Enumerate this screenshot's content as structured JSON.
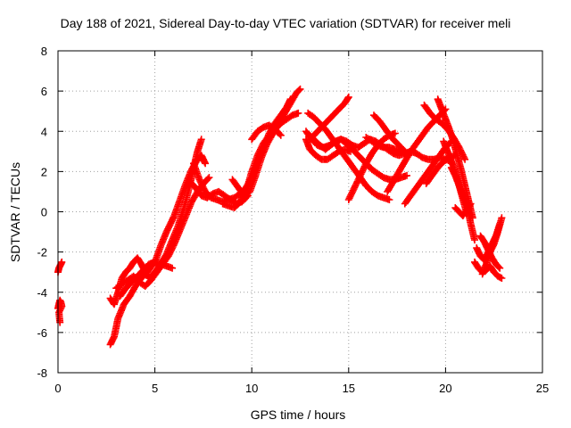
{
  "chart_data": {
    "type": "scatter",
    "title": "Day 188 of 2021, Sidereal Day-to-day VTEC variation (SDTVAR) for receiver meli",
    "xlabel": "GPS time / hours",
    "ylabel": "SDTVAR / TECUs",
    "xlim": [
      0,
      25
    ],
    "ylim": [
      -8,
      8
    ],
    "xticks": [
      "0",
      "5",
      "10",
      "15",
      "20",
      "25"
    ],
    "yticks": [
      "-8",
      "-6",
      "-4",
      "-2",
      "0",
      "2",
      "4",
      "6",
      "8"
    ],
    "grid": true,
    "marker": "+",
    "color": "#ff0000",
    "series": [
      {
        "x": [
          0.0,
          0.05,
          0.1,
          0.15,
          0.2
        ],
        "y": [
          -3.0,
          -2.8,
          -2.7,
          -2.6,
          -2.5
        ]
      },
      {
        "x": [
          0.0,
          0.05,
          0.1,
          0.15,
          0.2,
          0.05,
          0.1
        ],
        "y": [
          -4.8,
          -4.6,
          -4.4,
          -4.5,
          -4.7,
          -5.0,
          -5.5
        ]
      },
      {
        "x": [
          2.7,
          2.9,
          3.1,
          3.4,
          3.7,
          4.0,
          4.3,
          4.6,
          5.0,
          5.3,
          5.6,
          6.0,
          6.3,
          6.6,
          6.9,
          7.2,
          7.4,
          7.6
        ],
        "y": [
          -6.6,
          -6.2,
          -5.3,
          -4.6,
          -4.2,
          -3.7,
          -3.3,
          -3.0,
          -2.5,
          -1.7,
          -1.0,
          -0.2,
          0.6,
          1.4,
          2.1,
          2.6,
          2.8,
          2.4
        ]
      },
      {
        "x": [
          2.7,
          2.9,
          3.1,
          3.3,
          3.5,
          3.7,
          3.9,
          4.1,
          4.3,
          4.5,
          4.7,
          5.0,
          5.3,
          5.6,
          5.9,
          6.2,
          6.5,
          6.8,
          7.0,
          7.2,
          7.4
        ],
        "y": [
          -4.3,
          -4.6,
          -4.0,
          -3.3,
          -3.0,
          -2.8,
          -2.5,
          -2.3,
          -2.6,
          -3.0,
          -3.3,
          -3.0,
          -2.6,
          -2.1,
          -1.4,
          -0.7,
          0.2,
          1.3,
          2.2,
          3.0,
          3.6
        ]
      },
      {
        "x": [
          3.0,
          3.3,
          3.6,
          3.9,
          4.2,
          4.5,
          4.8,
          5.1,
          5.4,
          5.7,
          6.0,
          6.3,
          6.6,
          6.9,
          7.2,
          7.5,
          7.8
        ],
        "y": [
          -3.8,
          -3.6,
          -3.4,
          -3.2,
          -3.5,
          -3.7,
          -3.4,
          -3.0,
          -2.6,
          -2.2,
          -1.6,
          -0.9,
          -0.2,
          0.5,
          1.0,
          1.4,
          1.7
        ]
      },
      {
        "x": [
          3.2,
          3.5,
          3.8,
          4.1,
          4.4,
          4.7,
          5.0,
          5.3,
          5.6,
          5.9
        ],
        "y": [
          -4.2,
          -3.8,
          -3.5,
          -3.2,
          -2.9,
          -2.6,
          -2.5,
          -2.6,
          -2.7,
          -2.8
        ]
      },
      {
        "x": [
          6.8,
          7.1,
          7.4,
          7.7,
          8.0,
          8.3,
          8.6,
          8.9,
          9.2,
          9.5,
          9.8
        ],
        "y": [
          1.5,
          1.2,
          0.8,
          0.7,
          0.9,
          1.0,
          0.8,
          0.6,
          0.4,
          0.5,
          0.8
        ]
      },
      {
        "x": [
          7.0,
          7.3,
          7.6,
          7.9,
          8.2,
          8.5,
          8.8,
          9.1,
          9.4,
          9.7,
          10.0,
          10.3,
          10.6,
          10.9,
          11.2,
          11.5,
          11.8,
          12.0
        ],
        "y": [
          2.4,
          1.6,
          1.0,
          0.7,
          0.6,
          0.5,
          0.6,
          0.7,
          0.9,
          1.2,
          1.7,
          2.4,
          3.2,
          3.9,
          4.4,
          4.8,
          5.2,
          5.6
        ]
      },
      {
        "x": [
          8.5,
          8.8,
          9.1,
          9.4,
          9.7,
          10.0,
          10.3,
          10.6,
          10.9,
          11.2,
          11.5,
          11.8,
          12.1,
          12.4
        ],
        "y": [
          0.4,
          0.3,
          0.2,
          0.5,
          1.0,
          2.0,
          2.8,
          3.4,
          3.8,
          4.1,
          4.4,
          4.6,
          4.8,
          4.9
        ]
      },
      {
        "x": [
          9.0,
          9.3,
          9.6,
          9.9,
          10.2,
          10.5,
          10.8,
          11.1,
          11.4,
          11.7,
          12.0,
          12.3,
          12.5
        ],
        "y": [
          1.6,
          1.2,
          0.8,
          1.0,
          1.8,
          2.7,
          3.4,
          3.9,
          4.4,
          4.9,
          5.4,
          5.9,
          6.1
        ]
      },
      {
        "x": [
          10.0,
          10.3,
          10.6,
          10.9,
          11.2,
          11.5
        ],
        "y": [
          3.6,
          4.0,
          4.2,
          4.3,
          4.1,
          3.8
        ]
      },
      {
        "x": [
          12.8,
          13.1,
          13.4,
          13.7,
          14.0,
          14.3,
          14.6,
          14.9,
          15.2,
          15.5,
          15.8,
          16.1,
          16.4,
          16.7,
          17.0,
          17.3,
          17.6,
          17.9,
          18.2,
          18.5,
          18.8,
          19.1,
          19.4,
          19.7,
          20.0,
          20.3
        ],
        "y": [
          4.0,
          3.6,
          3.3,
          3.2,
          3.3,
          3.5,
          3.6,
          3.5,
          3.3,
          3.2,
          3.4,
          3.6,
          3.5,
          3.3,
          3.1,
          2.9,
          2.8,
          2.9,
          3.0,
          2.9,
          2.7,
          2.6,
          2.6,
          2.7,
          2.6,
          2.5
        ]
      },
      {
        "x": [
          12.8,
          13.0,
          13.3,
          13.6,
          13.9,
          14.2,
          14.5,
          14.8,
          15.1
        ],
        "y": [
          3.6,
          3.1,
          2.8,
          2.6,
          2.6,
          2.8,
          3.0,
          3.1,
          3.0
        ]
      },
      {
        "x": [
          12.9,
          13.2,
          13.5,
          13.8,
          14.1,
          14.4,
          14.7,
          15.0,
          15.3,
          15.6,
          15.9,
          16.2,
          16.5,
          16.8,
          17.1
        ],
        "y": [
          4.9,
          4.7,
          4.4,
          4.1,
          3.7,
          3.3,
          2.9,
          2.5,
          2.1,
          1.7,
          1.3,
          1.0,
          0.8,
          0.7,
          0.6
        ]
      },
      {
        "x": [
          13.0,
          13.4,
          13.8,
          14.2,
          14.6,
          15.0,
          15.3,
          15.6,
          15.9,
          16.2,
          16.5,
          16.8,
          17.1,
          17.4,
          17.7,
          18.0
        ],
        "y": [
          3.8,
          3.4,
          3.1,
          3.4,
          3.6,
          3.3,
          3.0,
          2.7,
          2.4,
          2.1,
          1.9,
          1.7,
          1.6,
          1.6,
          1.7,
          1.8
        ]
      },
      {
        "x": [
          13.0,
          13.3,
          13.6,
          13.9,
          14.2,
          14.5,
          14.8,
          15.0
        ],
        "y": [
          3.6,
          3.9,
          4.2,
          4.5,
          4.8,
          5.1,
          5.4,
          5.7
        ]
      },
      {
        "x": [
          15.0,
          15.3,
          15.6,
          15.9,
          16.2,
          16.5,
          16.8,
          17.1,
          17.4
        ],
        "y": [
          0.6,
          1.2,
          1.8,
          2.4,
          2.9,
          3.3,
          3.6,
          3.8,
          3.9
        ]
      },
      {
        "x": [
          15.9,
          16.2,
          16.5,
          16.8,
          17.1,
          17.4,
          17.7,
          18.0
        ],
        "y": [
          3.7,
          3.5,
          3.3,
          3.2,
          3.2,
          3.1,
          3.0,
          2.9
        ]
      },
      {
        "x": [
          16.3,
          16.6,
          16.9,
          17.2,
          17.5,
          17.8,
          18.1
        ],
        "y": [
          4.8,
          4.5,
          4.1,
          3.7,
          3.4,
          3.1,
          2.8
        ]
      },
      {
        "x": [
          17.0,
          17.3,
          17.6,
          17.9,
          18.2,
          18.5,
          18.8,
          19.1,
          19.4,
          19.7,
          20.0
        ],
        "y": [
          1.0,
          1.5,
          2.0,
          2.5,
          3.0,
          3.4,
          3.8,
          4.2,
          4.5,
          4.8,
          5.1
        ]
      },
      {
        "x": [
          17.9,
          18.2,
          18.5,
          18.8,
          19.1,
          19.4,
          19.7,
          20.0,
          20.3
        ],
        "y": [
          0.4,
          0.8,
          1.2,
          1.6,
          2.0,
          2.4,
          2.8,
          3.2,
          3.5
        ]
      },
      {
        "x": [
          18.9,
          19.2,
          19.5,
          19.8,
          20.1,
          20.4,
          20.7,
          21.0
        ],
        "y": [
          5.3,
          4.9,
          4.6,
          4.4,
          4.1,
          3.7,
          3.2,
          2.6
        ]
      },
      {
        "x": [
          19.0,
          19.3,
          19.6,
          19.9,
          20.2,
          20.5
        ],
        "y": [
          1.4,
          1.8,
          2.2,
          2.5,
          2.7,
          2.8
        ]
      },
      {
        "x": [
          19.6,
          19.8,
          20.0,
          20.2,
          20.4,
          20.6,
          20.8,
          21.0,
          21.2,
          21.4
        ],
        "y": [
          5.6,
          5.1,
          4.6,
          4.1,
          3.5,
          2.8,
          2.1,
          1.3,
          0.5,
          -0.3
        ]
      },
      {
        "x": [
          19.9,
          20.1,
          20.3,
          20.5,
          20.7,
          20.9,
          21.1
        ],
        "y": [
          3.5,
          3.0,
          2.5,
          2.0,
          1.3,
          0.6,
          -0.1
        ]
      },
      {
        "x": [
          20.3,
          20.5,
          20.7,
          20.9,
          21.1,
          21.3,
          21.5
        ],
        "y": [
          2.2,
          1.8,
          1.3,
          0.8,
          0.3,
          -0.6,
          -1.4
        ]
      },
      {
        "x": [
          20.5,
          20.7,
          20.9,
          21.1,
          21.3
        ],
        "y": [
          0.2,
          0.0,
          -0.2,
          0.1,
          0.4
        ]
      },
      {
        "x": [
          21.5,
          21.7,
          21.9,
          22.1,
          22.3,
          22.5,
          22.7,
          22.9
        ],
        "y": [
          -2.5,
          -2.8,
          -3.0,
          -2.9,
          -2.7,
          -3.0,
          -3.2,
          -3.3
        ]
      },
      {
        "x": [
          21.6,
          21.8,
          22.0,
          22.2,
          22.4,
          22.6,
          22.8
        ],
        "y": [
          -1.8,
          -2.2,
          -2.4,
          -2.0,
          -1.6,
          -1.2,
          -0.6
        ]
      },
      {
        "x": [
          21.8,
          22.0,
          22.2,
          22.4,
          22.6,
          22.8
        ],
        "y": [
          -1.2,
          -1.5,
          -1.9,
          -2.3,
          -2.6,
          -2.8
        ]
      },
      {
        "x": [
          21.9,
          22.1,
          22.3,
          22.5,
          22.7,
          22.9
        ],
        "y": [
          -3.1,
          -2.6,
          -2.0,
          -1.6,
          -1.0,
          -0.3
        ]
      }
    ]
  }
}
